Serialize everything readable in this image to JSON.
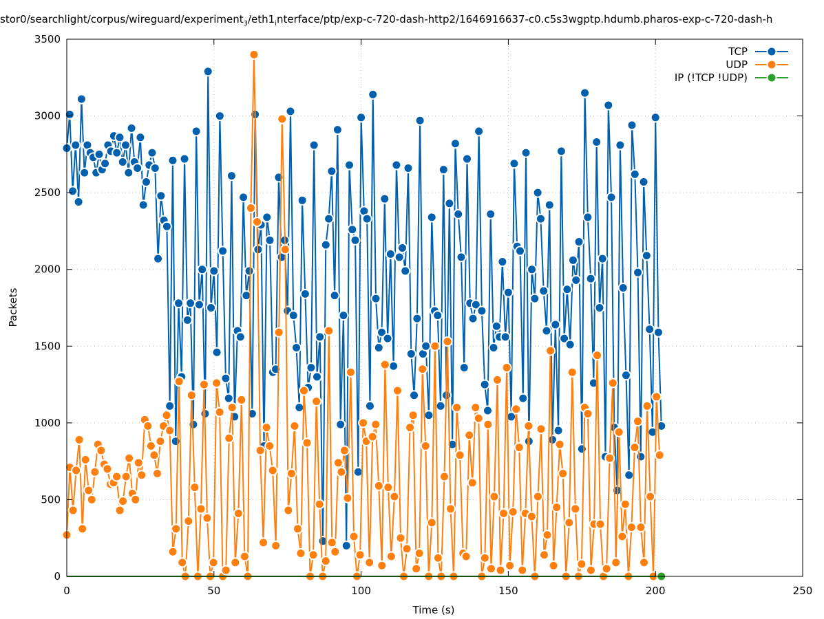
{
  "title_parts": [
    "stor0/searchlight/corpus/wireguard/experiment",
    "3",
    "/eth1",
    "i",
    "nterface/ptp/exp-c-720-dash-http2/1646916637-c0.c5s3wgptp.hdumb.pharos-exp-c-720-dash-h"
  ],
  "chart_data": {
    "type": "line",
    "xlabel": "Time (s)",
    "ylabel": "Packets",
    "xlim": [
      0,
      250
    ],
    "ylim": [
      0,
      3500
    ],
    "xticks": [
      0,
      50,
      100,
      150,
      200,
      250
    ],
    "yticks": [
      0,
      500,
      1000,
      1500,
      2000,
      2500,
      3000,
      3500
    ],
    "grid": true,
    "legend_position": "top-right",
    "series": [
      {
        "name": "TCP",
        "color": "#0060ad",
        "start": 0,
        "step": 1,
        "values": [
          2790,
          3010,
          2510,
          2810,
          2440,
          3110,
          2630,
          2810,
          2760,
          2730,
          2630,
          2750,
          2650,
          2690,
          2810,
          2770,
          2870,
          2760,
          2860,
          2700,
          2810,
          2630,
          2920,
          2700,
          2660,
          2860,
          2420,
          2570,
          2680,
          2760,
          2660,
          2070,
          2480,
          2320,
          2280,
          1110,
          2710,
          880,
          1780,
          1300,
          2720,
          1670,
          1780,
          990,
          2900,
          1770,
          2000,
          1060,
          3290,
          1750,
          1990,
          1460,
          3000,
          2120,
          1290,
          1160,
          2610,
          1040,
          1600,
          1560,
          2470,
          1830,
          1990,
          1060,
          3010,
          2130,
          2290,
          850,
          2340,
          2190,
          1330,
          1350,
          2600,
          2080,
          2190,
          1730,
          3030,
          1700,
          1490,
          1100,
          2450,
          1840,
          1230,
          1360,
          2810,
          1300,
          1560,
          230,
          2160,
          2330,
          2640,
          1830,
          2910,
          990,
          1700,
          200,
          2680,
          2260,
          2190,
          680,
          2990,
          2380,
          2330,
          1110,
          3140,
          1810,
          1490,
          1590,
          2460,
          1550,
          2100,
          1370,
          2680,
          2080,
          2140,
          1990,
          2660,
          1450,
          1180,
          1680,
          2970,
          1450,
          1500,
          1050,
          2340,
          1730,
          1700,
          1110,
          2650,
          1180,
          2430,
          860,
          2820,
          2360,
          2080,
          1360,
          2720,
          1780,
          1680,
          1770,
          2900,
          1730,
          1250,
          1080,
          2360,
          1490,
          1630,
          1560,
          2050,
          1560,
          1850,
          1040,
          2690,
          2150,
          2120,
          1160,
          2760,
          880,
          2000,
          1810,
          2500,
          2330,
          1860,
          1600,
          2420,
          890,
          1640,
          950,
          2770,
          1550,
          1870,
          1510,
          2060,
          1930,
          2180,
          830,
          3150,
          2340,
          1940,
          1260,
          2830,
          1750,
          2070,
          780,
          3070,
          2470,
          970,
          560,
          2810,
          1880,
          1310,
          660,
          2940,
          2620,
          1980,
          780,
          2570,
          2090,
          1610,
          940,
          2990,
          1590,
          980
        ]
      },
      {
        "name": "UDP",
        "color": "#ff7f0e",
        "start": 0,
        "step": 1.06,
        "values": [
          270,
          710,
          430,
          690,
          890,
          310,
          760,
          560,
          500,
          680,
          860,
          820,
          730,
          700,
          600,
          610,
          650,
          430,
          490,
          650,
          770,
          540,
          500,
          740,
          660,
          1020,
          980,
          850,
          790,
          670,
          880,
          980,
          1050,
          950,
          160,
          310,
          1270,
          90,
          0,
          360,
          1180,
          580,
          0,
          440,
          1250,
          380,
          0,
          90,
          1260,
          1070,
          0,
          40,
          900,
          1100,
          90,
          410,
          1150,
          130,
          0,
          2400,
          3400,
          2310,
          820,
          220,
          970,
          850,
          690,
          200,
          1590,
          2980,
          2130,
          430,
          670,
          980,
          310,
          150,
          1210,
          870,
          0,
          140,
          1140,
          470,
          0,
          100,
          1600,
          220,
          160,
          740,
          680,
          820,
          510,
          1330,
          260,
          0,
          140,
          1000,
          880,
          90,
          910,
          990,
          590,
          70,
          1380,
          580,
          130,
          520,
          1210,
          250,
          0,
          180,
          970,
          1050,
          50,
          150,
          1350,
          850,
          0,
          350,
          1500,
          120,
          0,
          650,
          1530,
          440,
          0,
          1100,
          790,
          150,
          130,
          920,
          610,
          1100,
          1030,
          0,
          120,
          990,
          50,
          520,
          1280,
          40,
          410,
          1360,
          70,
          420,
          1090,
          840,
          40,
          410,
          980,
          390,
          0,
          520,
          960,
          140,
          270,
          1470,
          70,
          450,
          860,
          670,
          0,
          350,
          1330,
          440,
          0,
          80,
          1100,
          1060,
          40,
          340,
          1440,
          340,
          0,
          50,
          770,
          1260,
          90,
          940,
          260,
          470,
          0,
          320,
          840,
          1010,
          320,
          90,
          1110,
          520,
          0,
          1170,
          790
        ]
      },
      {
        "name": "IP (!TCP  !UDP)",
        "color": "#2ca02c",
        "start": 0,
        "step": 1,
        "values": [
          0,
          0,
          0,
          0,
          0,
          0,
          0,
          0,
          0,
          0,
          0,
          0,
          0,
          0,
          0,
          0,
          0,
          0,
          0,
          0,
          0,
          0,
          0,
          0,
          0,
          0,
          0,
          0,
          0,
          0,
          0,
          0,
          0,
          0,
          0,
          0,
          0,
          0,
          0,
          0,
          0,
          0,
          0,
          0,
          0,
          0,
          0,
          0,
          0,
          0,
          0,
          0,
          0,
          0,
          0,
          0,
          0,
          0,
          0,
          0,
          0,
          0,
          0,
          0,
          0,
          0,
          0,
          0,
          0,
          0,
          0,
          0,
          0,
          0,
          0,
          0,
          0,
          0,
          0,
          0,
          0,
          0,
          0,
          0,
          0,
          0,
          0,
          0,
          0,
          0,
          0,
          0,
          0,
          0,
          0,
          0,
          0,
          0,
          0,
          0,
          0,
          0,
          0,
          0,
          0,
          0,
          0,
          0,
          0,
          0,
          0,
          0,
          0,
          0,
          0,
          0,
          0,
          0,
          0,
          0,
          0,
          0,
          0,
          0,
          0,
          0,
          0,
          0,
          0,
          0,
          0,
          0,
          0,
          0,
          0,
          0,
          0,
          0,
          0,
          0,
          0,
          0,
          0,
          0,
          0,
          0,
          0,
          0,
          0,
          0,
          0,
          0,
          0,
          0,
          0,
          0,
          0,
          0,
          0,
          0,
          0,
          0,
          0,
          0,
          0,
          0,
          0,
          0,
          0,
          0,
          0,
          0,
          0,
          0,
          0,
          0,
          0,
          0,
          0,
          0,
          0,
          0,
          0,
          0,
          0,
          0,
          0,
          0,
          0,
          0,
          0,
          0,
          0,
          0,
          0,
          0,
          0,
          0,
          0,
          0,
          0,
          0,
          0
        ]
      }
    ]
  }
}
